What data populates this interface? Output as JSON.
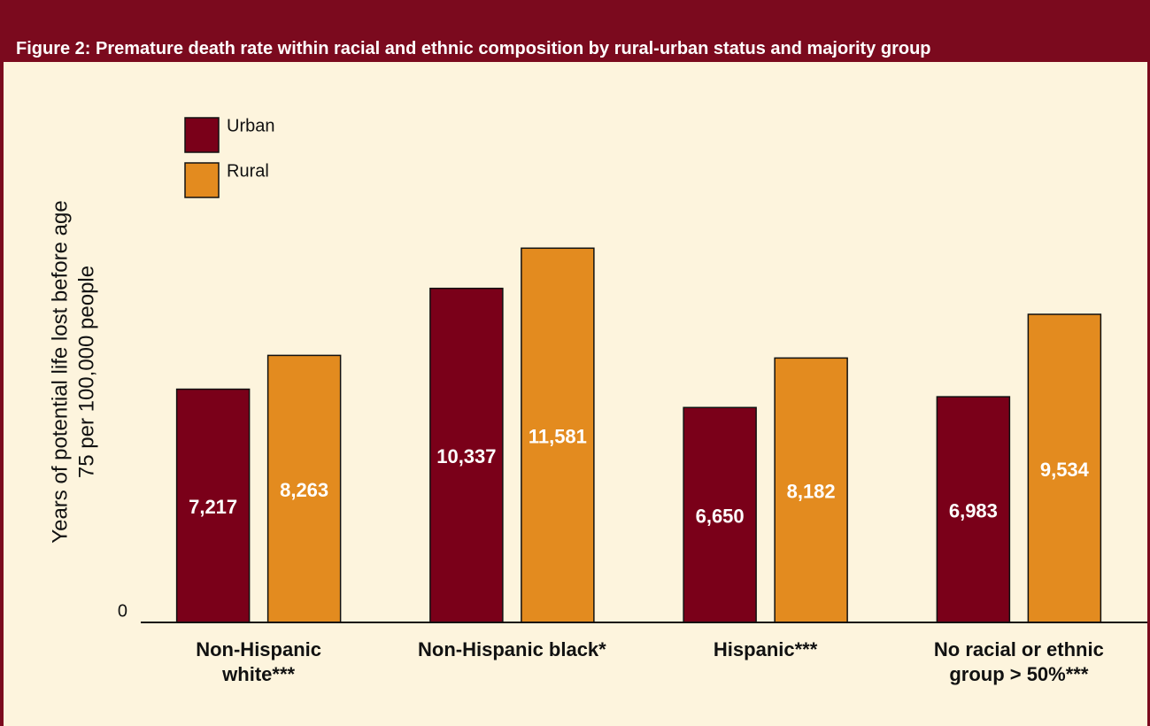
{
  "chart_data": {
    "type": "bar",
    "title": "Figure 2: Premature death rate within racial and ethnic composition by rural-urban status and majority group",
    "ylabel": [
      "Years of potential life lost before age",
      "75 per 100,000 people"
    ],
    "categories": [
      "Non-Hispanic white***",
      "Non-Hispanic black*",
      "Hispanic***",
      "No racial or ethnic group > 50%***"
    ],
    "series": [
      {
        "name": "Urban",
        "color": "#7a0019",
        "values": [
          7217,
          10337,
          6650,
          6983
        ],
        "value_labels": [
          "7,217",
          "10,337",
          "6,650",
          "6,983"
        ]
      },
      {
        "name": "Rural",
        "color": "#e38b1f",
        "values": [
          8263,
          11581,
          8182,
          9534
        ],
        "value_labels": [
          "8,263",
          "11,581",
          "8,182",
          "9,534"
        ]
      }
    ],
    "ylim": [
      0,
      12000
    ],
    "yticks": [
      0
    ]
  }
}
